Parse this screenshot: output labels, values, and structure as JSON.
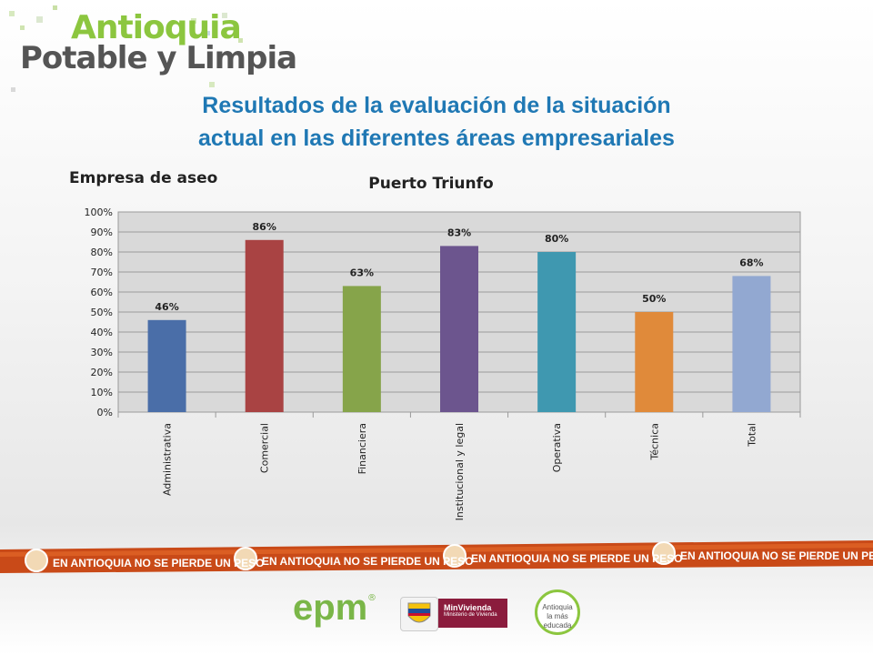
{
  "brand": {
    "line1": "Antioquia",
    "line2": "Potable y Limpia"
  },
  "header": {
    "title_line1": "Resultados de la evaluación de la  situación",
    "title_line2": "actual en las diferentes áreas empresariales"
  },
  "subtitle": "Empresa de aseo",
  "banner": {
    "text": "EN ANTIOQUIA NO SE PIERDE UN PESO"
  },
  "footer": {
    "epm": "epm",
    "reg": "®",
    "minvivienda": "MinVivienda",
    "minvivienda_sub": "Ministerio de Vivienda",
    "badge_line1": "Antioquia",
    "badge_line2": "la más",
    "badge_line3": "educada"
  },
  "colors": {
    "title": "#1f78b4",
    "banner_bg": "#c94a18",
    "bars": [
      "#4a6ea8",
      "#a94343",
      "#86a44a",
      "#6c558e",
      "#3f98b0",
      "#e08a3a",
      "#92a8d1"
    ]
  },
  "chart_data": {
    "type": "bar",
    "title": "Puerto Triunfo",
    "categories": [
      "Administrativa",
      "Comercial",
      "Financiera",
      "Institucional y legal",
      "Operativa",
      "Técnica",
      "Total"
    ],
    "values": [
      46,
      86,
      63,
      83,
      80,
      50,
      68
    ],
    "data_labels": [
      "46%",
      "86%",
      "63%",
      "83%",
      "80%",
      "50%",
      "68%"
    ],
    "ylim": [
      0,
      100
    ],
    "yticks": [
      "0%",
      "10%",
      "20%",
      "30%",
      "40%",
      "50%",
      "60%",
      "70%",
      "80%",
      "90%",
      "100%"
    ],
    "grid": true,
    "xlabel": "",
    "ylabel": ""
  }
}
